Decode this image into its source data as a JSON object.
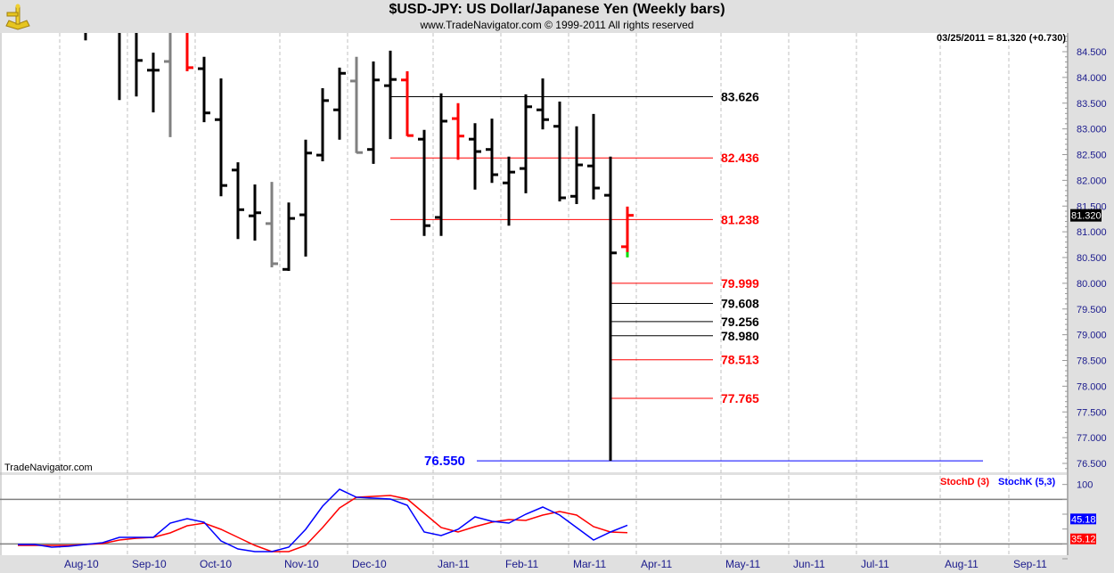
{
  "header": {
    "title": "$USD-JPY:  US Dollar/Japanese Yen  (Weekly bars)",
    "subtitle": "www.TradeNavigator.com © 1999-2011 All rights reserved",
    "last_quote": "03/25/2011 = 81.320 (+0.730)",
    "watermark": "TradeNavigator.com"
  },
  "colors": {
    "up": "#000000",
    "neutral": "#808080",
    "down": "#ff0000",
    "axis_text": "#1a1a8c",
    "stochD": "#ff0000",
    "stochK": "#0000ff",
    "level_blue": "#0000ff"
  },
  "chart_data": [
    {
      "type": "ohlc",
      "title": "$USD-JPY Weekly bars",
      "ylim": [
        76.3,
        84.85
      ],
      "y_ticks": [
        "84.500",
        "84.000",
        "83.500",
        "83.000",
        "82.500",
        "82.000",
        "81.500",
        "81.000",
        "80.500",
        "80.000",
        "79.500",
        "79.000",
        "78.500",
        "78.000",
        "77.500",
        "77.000",
        "76.500"
      ],
      "last_price_label": "81.320",
      "x_labels": [
        "Aug-10",
        "Sep-10",
        "Oct-10",
        "Nov-10",
        "Dec-10",
        "Jan-11",
        "Feb-11",
        "Mar-11",
        "Apr-11",
        "May-11",
        "Jun-11",
        "Jul-11",
        "Aug-11",
        "Sep-11"
      ],
      "bars": [
        null,
        null,
        null,
        null,
        {
          "o": 85.0,
          "h": 85.2,
          "l": 84.72,
          "c": 84.9,
          "color": "up"
        },
        null,
        {
          "o": 85.2,
          "h": 85.4,
          "l": 83.56,
          "c": 85.1,
          "color": "up"
        },
        {
          "o": 85.2,
          "h": 85.4,
          "l": 83.63,
          "c": 84.33,
          "color": "up"
        },
        {
          "o": 84.14,
          "h": 84.48,
          "l": 83.32,
          "c": 84.14,
          "color": "up"
        },
        {
          "o": 84.31,
          "h": 85.2,
          "l": 82.84,
          "c": 84.9,
          "color": "neutral"
        },
        {
          "o": 85.2,
          "h": 85.3,
          "l": 84.12,
          "c": 84.19,
          "color": "down"
        },
        {
          "o": 84.17,
          "h": 84.4,
          "l": 83.13,
          "c": 83.31,
          "color": "up"
        },
        {
          "o": 83.18,
          "h": 83.98,
          "l": 81.69,
          "c": 81.9,
          "color": "up"
        },
        {
          "o": 82.2,
          "h": 82.35,
          "l": 80.86,
          "c": 81.43,
          "color": "up"
        },
        {
          "o": 81.31,
          "h": 81.92,
          "l": 80.83,
          "c": 81.37,
          "color": "up"
        },
        {
          "o": 81.16,
          "h": 81.97,
          "l": 80.31,
          "c": 80.38,
          "color": "neutral"
        },
        {
          "o": 80.27,
          "h": 81.57,
          "l": 80.24,
          "c": 81.26,
          "color": "up"
        },
        {
          "o": 81.33,
          "h": 82.79,
          "l": 80.52,
          "c": 82.53,
          "color": "up"
        },
        {
          "o": 82.49,
          "h": 83.79,
          "l": 82.37,
          "c": 83.55,
          "color": "up"
        },
        {
          "o": 83.37,
          "h": 84.19,
          "l": 82.79,
          "c": 84.08,
          "color": "up"
        },
        {
          "o": 83.93,
          "h": 84.4,
          "l": 82.53,
          "c": 82.54,
          "color": "neutral"
        },
        {
          "o": 82.6,
          "h": 84.31,
          "l": 82.32,
          "c": 83.95,
          "color": "up"
        },
        {
          "o": 83.84,
          "h": 84.52,
          "l": 82.8,
          "c": 83.96,
          "color": "up"
        },
        {
          "o": 83.95,
          "h": 84.12,
          "l": 82.86,
          "c": 82.87,
          "color": "down"
        },
        {
          "o": 82.8,
          "h": 82.98,
          "l": 80.92,
          "c": 81.12,
          "color": "up"
        },
        {
          "o": 81.28,
          "h": 83.69,
          "l": 80.92,
          "c": 83.15,
          "color": "up"
        },
        {
          "o": 83.2,
          "h": 83.5,
          "l": 82.4,
          "c": 82.86,
          "color": "down"
        },
        {
          "o": 82.8,
          "h": 83.11,
          "l": 81.82,
          "c": 82.56,
          "color": "up"
        },
        {
          "o": 82.6,
          "h": 83.2,
          "l": 81.95,
          "c": 82.11,
          "color": "up"
        },
        {
          "o": 81.95,
          "h": 82.46,
          "l": 81.12,
          "c": 82.16,
          "color": "up"
        },
        {
          "o": 82.23,
          "h": 83.67,
          "l": 81.75,
          "c": 83.43,
          "color": "up"
        },
        {
          "o": 83.37,
          "h": 83.98,
          "l": 82.99,
          "c": 83.18,
          "color": "up"
        },
        {
          "o": 83.05,
          "h": 83.53,
          "l": 81.59,
          "c": 81.66,
          "color": "up"
        },
        {
          "o": 81.69,
          "h": 83.05,
          "l": 81.54,
          "c": 82.3,
          "color": "up"
        },
        {
          "o": 82.28,
          "h": 83.29,
          "l": 81.63,
          "c": 81.85,
          "color": "up"
        },
        {
          "o": 81.71,
          "h": 82.46,
          "l": 76.55,
          "c": 80.59,
          "color": "up"
        },
        {
          "o": 80.71,
          "h": 81.49,
          "l": 80.59,
          "c": 81.32,
          "color": "down"
        }
      ],
      "levels": [
        {
          "value": 83.626,
          "label": "83.626",
          "color": "#000000",
          "start_week": 22
        },
        {
          "value": 82.436,
          "label": "82.436",
          "color": "#ff0000",
          "start_week": 22
        },
        {
          "value": 81.238,
          "label": "81.238",
          "color": "#ff0000",
          "start_week": 22
        },
        {
          "value": 79.999,
          "label": "79.999",
          "color": "#ff0000",
          "start_week": 35
        },
        {
          "value": 79.608,
          "label": "79.608",
          "color": "#000000",
          "start_week": 35
        },
        {
          "value": 79.256,
          "label": "79.256",
          "color": "#000000",
          "start_week": 35
        },
        {
          "value": 78.98,
          "label": "78.980",
          "color": "#000000",
          "start_week": 35
        },
        {
          "value": 78.513,
          "label": "78.513",
          "color": "#ff0000",
          "start_week": 35
        },
        {
          "value": 77.765,
          "label": "77.765",
          "color": "#ff0000",
          "start_week": 35
        },
        {
          "value": 76.55,
          "label": "76.550",
          "color": "#0000ff",
          "start_week": 35
        }
      ]
    },
    {
      "type": "line",
      "title": "Stochastic",
      "ylim": [
        0,
        100
      ],
      "y_ticks": [
        "100"
      ],
      "reference_lines": [
        80,
        20
      ],
      "series": [
        {
          "name": "StochD (3)",
          "color": "#ff0000",
          "last_label": "35.12",
          "values": [
            18,
            18,
            18,
            18,
            19.2,
            20.4,
            25.2,
            27.6,
            28.8,
            34.8,
            44.4,
            48,
            39.6,
            28.8,
            18,
            9.6,
            9.6,
            18,
            42,
            68.4,
            82.8,
            84,
            85.2,
            80.4,
            61.2,
            42,
            36,
            43.2,
            49.2,
            52.8,
            51.6,
            58.8,
            63.6,
            58.8,
            43.2,
            36,
            35.12
          ]
        },
        {
          "name": "StochK (5,3)",
          "color": "#0000ff",
          "last_label": "45.18",
          "values": [
            19.2,
            19.2,
            15.6,
            16.8,
            19.2,
            21.6,
            28.8,
            28.8,
            28.8,
            48,
            54,
            49.2,
            24,
            13.2,
            9.6,
            9.6,
            15.6,
            39.6,
            70.8,
            93.6,
            82.8,
            81.6,
            80.4,
            72,
            36,
            31.2,
            39.6,
            56.4,
            50.4,
            48,
            60,
            69.6,
            58.8,
            42,
            25.2,
            36,
            45.18
          ]
        }
      ]
    }
  ]
}
